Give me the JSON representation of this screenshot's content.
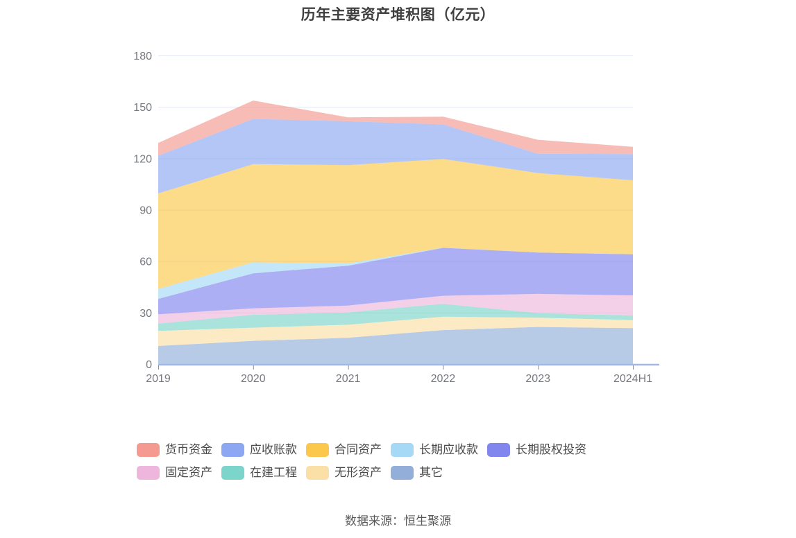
{
  "source": "数据来源：恒生聚源",
  "chart_data": {
    "type": "area",
    "stacked": true,
    "title": "历年主要资产堆积图（亿元）",
    "unit": "亿元",
    "categories": [
      "2019",
      "2020",
      "2021",
      "2022",
      "2023",
      "2024H1"
    ],
    "series_order": "bottom-to-top",
    "series": [
      {
        "name": "其它",
        "color": "#92AED9",
        "values": [
          10.5,
          13.5,
          15.3,
          19.8,
          21.6,
          20.9
        ]
      },
      {
        "name": "无形资产",
        "color": "#FADFA7",
        "values": [
          8.8,
          7.7,
          7.6,
          7.8,
          5.4,
          4.7
        ]
      },
      {
        "name": "在建工程",
        "color": "#7CD5CA",
        "values": [
          4.3,
          7.5,
          7.2,
          7.5,
          2.7,
          2.7
        ]
      },
      {
        "name": "固定资产",
        "color": "#EEB6DC",
        "values": [
          5.4,
          3.8,
          4.0,
          4.7,
          11.2,
          11.7
        ]
      },
      {
        "name": "长期股权投资",
        "color": "#8186EF",
        "values": [
          9.0,
          20.4,
          23.2,
          28.0,
          24.1,
          24.0
        ]
      },
      {
        "name": "长期应收款",
        "color": "#A5D9F6",
        "values": [
          5.8,
          6.4,
          1.4,
          0.1,
          0.0,
          0.0
        ]
      },
      {
        "name": "合同资产",
        "color": "#FBC84C",
        "values": [
          55.7,
          57.3,
          57.3,
          51.7,
          46.4,
          43.2
        ]
      },
      {
        "name": "应收账款",
        "color": "#8DA8F2",
        "values": [
          22.0,
          26.4,
          25.6,
          20.2,
          11.3,
          15.3
        ]
      },
      {
        "name": "货币资金",
        "color": "#F59A90",
        "values": [
          7.5,
          10.7,
          2.3,
          4.5,
          8.1,
          4.2
        ]
      }
    ],
    "totals": [
      129.0,
      153.7,
      143.9,
      144.3,
      130.8,
      126.7
    ],
    "legend_order": [
      "货币资金",
      "应收账款",
      "合同资产",
      "长期应收款",
      "长期股权投资",
      "固定资产",
      "在建工程",
      "无形资产",
      "其它"
    ],
    "legend_position": "bottom",
    "xlabel": "",
    "ylabel": "",
    "ylim": [
      0,
      180
    ],
    "yticks": [
      0,
      30,
      60,
      90,
      120,
      150,
      180
    ],
    "grid": true,
    "style": {
      "grid_color": "#E2E7F3",
      "axis_line_color": "#A3B8E8",
      "tick_color": "#8b909a",
      "area_opacity": 0.66
    }
  }
}
